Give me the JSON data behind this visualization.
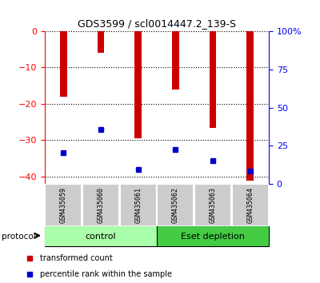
{
  "title": "GDS3599 / scl0014447.2_139-S",
  "samples": [
    "GSM435059",
    "GSM435060",
    "GSM435061",
    "GSM435062",
    "GSM435063",
    "GSM435064"
  ],
  "transformed_counts": [
    -18.0,
    -6.0,
    -29.5,
    -16.0,
    -26.5,
    -41.0
  ],
  "percentile_ranks": [
    -33.5,
    -27.0,
    -38.0,
    -32.5,
    -35.5,
    -38.5
  ],
  "left_ylim": [
    -42,
    0
  ],
  "left_yticks": [
    0,
    -10,
    -20,
    -30,
    -40
  ],
  "right_yticks": [
    0,
    25,
    50,
    75,
    100
  ],
  "groups": [
    {
      "label": "control",
      "indices": [
        0,
        1,
        2
      ],
      "color": "#aaffaa"
    },
    {
      "label": "Eset depletion",
      "indices": [
        3,
        4,
        5
      ],
      "color": "#44cc44"
    }
  ],
  "bar_color": "#cc0000",
  "dot_color": "#0000cc",
  "tick_area_color": "#cccccc",
  "title_fontsize": 9,
  "legend_items": [
    {
      "label": "transformed count",
      "color": "#cc0000"
    },
    {
      "label": "percentile rank within the sample",
      "color": "#0000cc"
    }
  ],
  "bar_width": 0.18
}
